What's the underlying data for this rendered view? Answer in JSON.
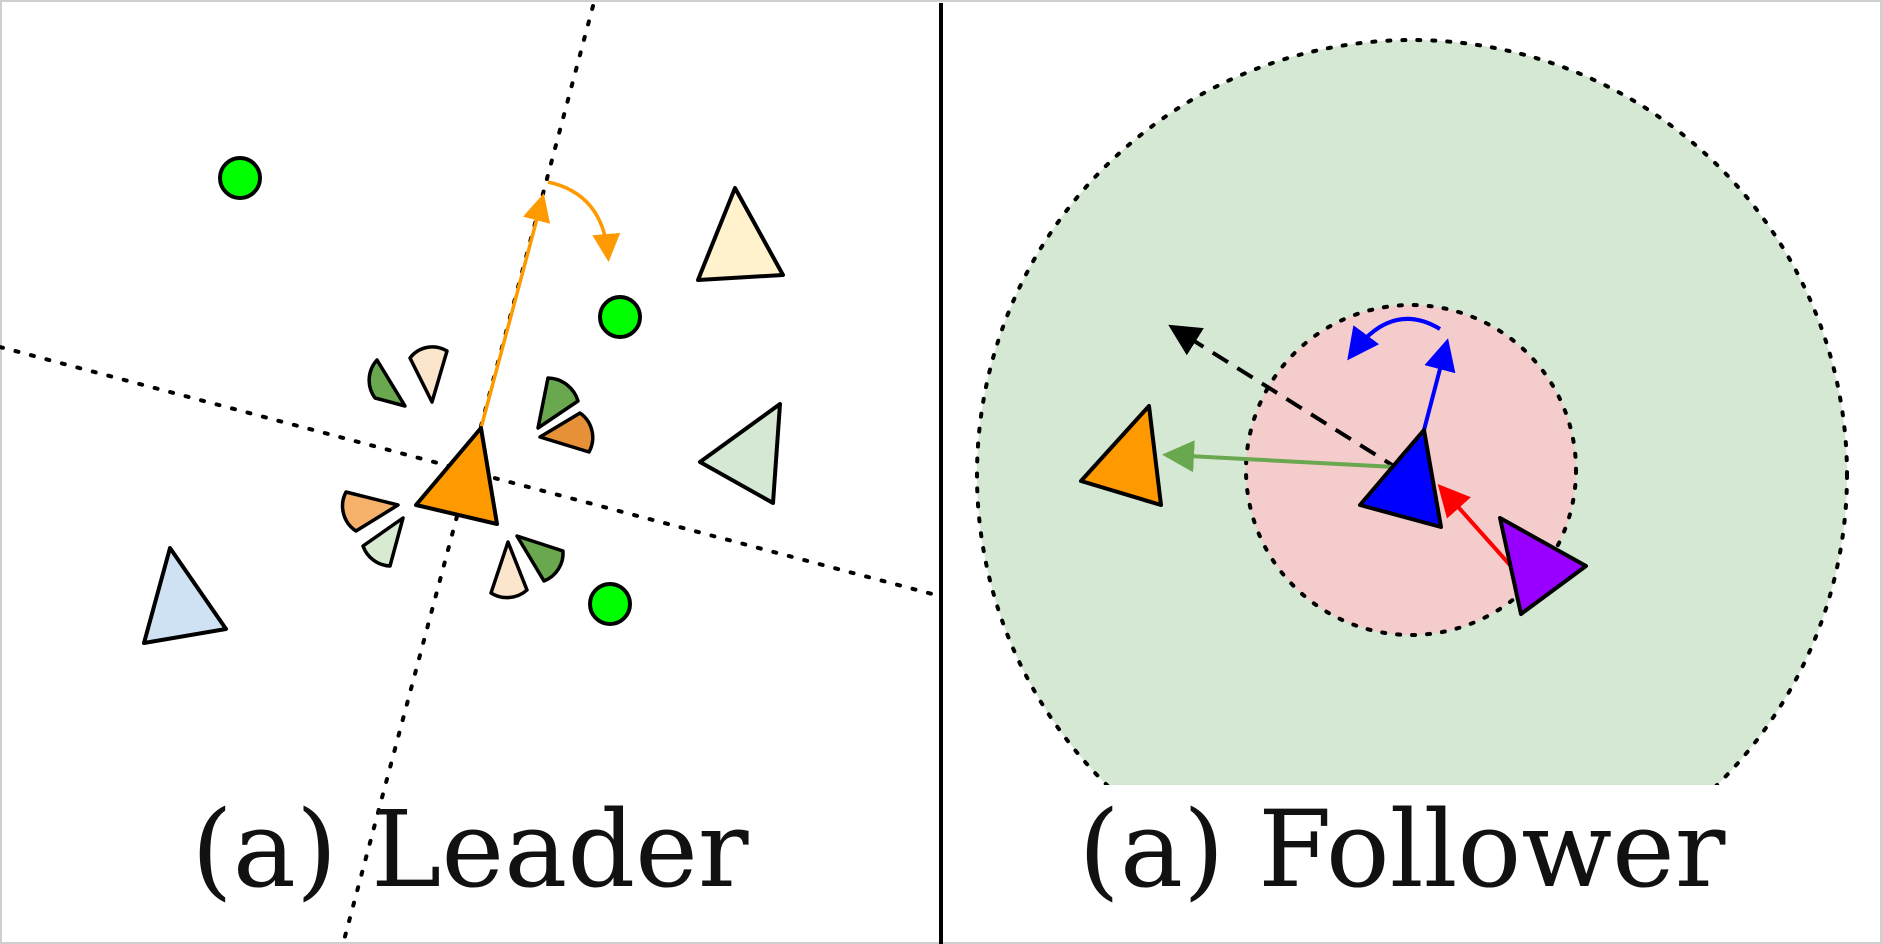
{
  "panels": {
    "leader": {
      "caption": "(a) Leader",
      "colors": {
        "leader_agent": "#FF9900",
        "heading_arrow": "#FF9900",
        "landmark": "#00FF00",
        "agent_yellow": "#FFF2CC",
        "agent_green": "#D5E8D4",
        "agent_blue": "#CFE2F3",
        "sector_dark_green": "#6AA84F",
        "sector_light_peach": "#FCE5CD",
        "sector_dark_orange": "#E69138",
        "sector_light_orange": "#F6B26B",
        "sector_light_green": "#D9EAD3"
      },
      "icons": [
        "landmark-circle",
        "agent-triangle",
        "observation-sector",
        "dotted-axis-line",
        "rotation-arrow"
      ]
    },
    "follower": {
      "caption": "(a) Follower",
      "colors": {
        "outer_zone": "#D5E8D4",
        "inner_zone": "#F4CCCC",
        "follower_agent": "#0000FF",
        "leader_agent": "#FF9900",
        "adversary_agent": "#9900FF",
        "attraction_arrow": "#6AA84F",
        "repulsion_arrow": "#FF0000",
        "heading_arrow": "#0000FF",
        "resultant_arrow": "#000000"
      },
      "icons": [
        "agent-triangle",
        "dashed-resultant-arrow",
        "rotation-arrow",
        "dotted-zone-boundary"
      ]
    }
  }
}
